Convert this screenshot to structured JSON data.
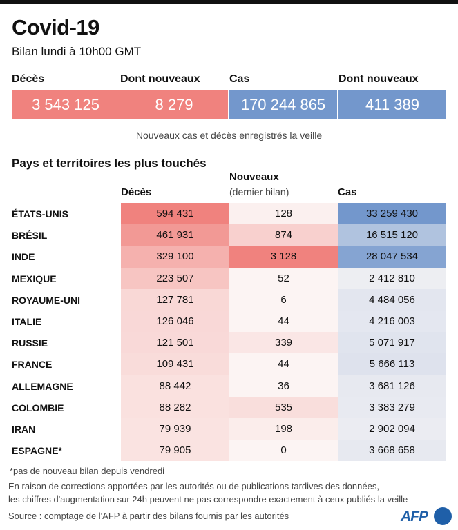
{
  "header": {
    "title": "Covid-19",
    "subtitle": "Bilan lundi à 10h00 GMT"
  },
  "summary": [
    {
      "label": "Décès",
      "value": "3 543 125",
      "color": "#f0827e"
    },
    {
      "label": "Dont nouveaux",
      "value": "8 279",
      "color": "#f0827e"
    },
    {
      "label": "Cas",
      "value": "170 244 865",
      "color": "#7397cc"
    },
    {
      "label": "Dont nouveaux",
      "value": "411 389",
      "color": "#7397cc"
    }
  ],
  "summary_note": "Nouveaux cas et décès enregistrés la veille",
  "section_title": "Pays et territoires les plus touchés",
  "chart_data": {
    "type": "table",
    "title": "Pays et territoires les plus touchés",
    "columns": [
      {
        "label": "Décès",
        "sublabel": "",
        "color": "#f0827e"
      },
      {
        "label": "Nouveaux",
        "sublabel": "(dernier bilan)",
        "color": "#f0827e"
      },
      {
        "label": "Cas",
        "sublabel": "",
        "color": "#7397cc"
      }
    ],
    "rows": [
      {
        "country": "ÉTATS-UNIS",
        "deaths": 594431,
        "new": 128,
        "cases": 33259430
      },
      {
        "country": "BRÉSIL",
        "deaths": 461931,
        "new": 874,
        "cases": 16515120
      },
      {
        "country": "INDE",
        "deaths": 329100,
        "new": 3128,
        "cases": 28047534
      },
      {
        "country": "MEXIQUE",
        "deaths": 223507,
        "new": 52,
        "cases": 2412810
      },
      {
        "country": "ROYAUME-UNI",
        "deaths": 127781,
        "new": 6,
        "cases": 4484056
      },
      {
        "country": "ITALIE",
        "deaths": 126046,
        "new": 44,
        "cases": 4216003
      },
      {
        "country": "RUSSIE",
        "deaths": 121501,
        "new": 339,
        "cases": 5071917
      },
      {
        "country": "FRANCE",
        "deaths": 109431,
        "new": 44,
        "cases": 5666113
      },
      {
        "country": "ALLEMAGNE",
        "deaths": 88442,
        "new": 36,
        "cases": 3681126
      },
      {
        "country": "COLOMBIE",
        "deaths": 88282,
        "new": 535,
        "cases": 3383279
      },
      {
        "country": "IRAN",
        "deaths": 79939,
        "new": 198,
        "cases": 2902094
      },
      {
        "country": "ESPAGNE*",
        "deaths": 79905,
        "new": 0,
        "cases": 3668658
      }
    ]
  },
  "footer": {
    "asterisk_note": "*pas de nouveau bilan depuis vendredi",
    "disclaimer_1": "En raison de corrections apportées par les autorités ou de publications tardives des données,",
    "disclaimer_2": "les chiffres d'augmentation sur 24h peuvent ne pas correspondre exactement à ceux publiés la veille",
    "source": "Source : comptage de l'AFP à partir des bilans fournis par les autorités",
    "logo": "AFP"
  }
}
